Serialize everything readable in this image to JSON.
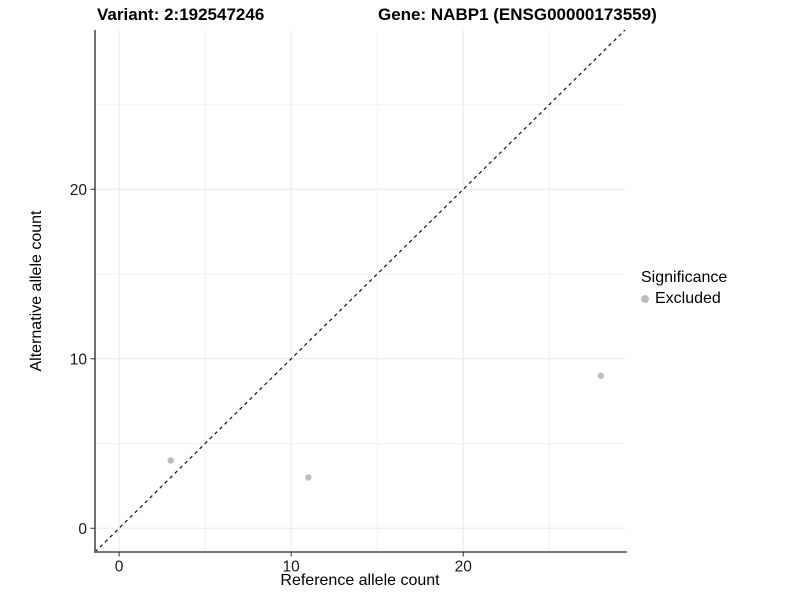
{
  "titles": {
    "variant": "Variant: 2:192547246",
    "gene": "Gene: NABP1 (ENSG00000173559)"
  },
  "chart_data": {
    "type": "scatter",
    "xlabel": "Reference allele count",
    "ylabel": "Alternative allele count",
    "series": [
      {
        "name": "Excluded",
        "color": "#bdbdbd",
        "points": [
          {
            "x": 3,
            "y": 4
          },
          {
            "x": 11,
            "y": 3
          },
          {
            "x": 28,
            "y": 9
          }
        ]
      }
    ],
    "identity_line": {
      "style": "dashed",
      "color": "#111111"
    },
    "x_ticks": [
      0,
      10,
      20
    ],
    "y_ticks": [
      0,
      10,
      20
    ],
    "x_minor_ticks": [
      5,
      15,
      25
    ],
    "y_minor_ticks": [
      5,
      15,
      25
    ],
    "x_domain": [
      -1.4,
      29.4
    ],
    "y_domain": [
      -1.4,
      29.4
    ],
    "grid": {
      "major_color": "#e8e8e8",
      "minor_color": "#f3f3f3"
    },
    "axis_color_left": "#111111",
    "axis_color_bottom": "#777777",
    "tick_color": "#333333",
    "point_radius": 3.2,
    "legend": {
      "title": "Significance",
      "position": "right",
      "items": [
        {
          "label": "Excluded",
          "color": "#bdbdbd"
        }
      ]
    }
  }
}
